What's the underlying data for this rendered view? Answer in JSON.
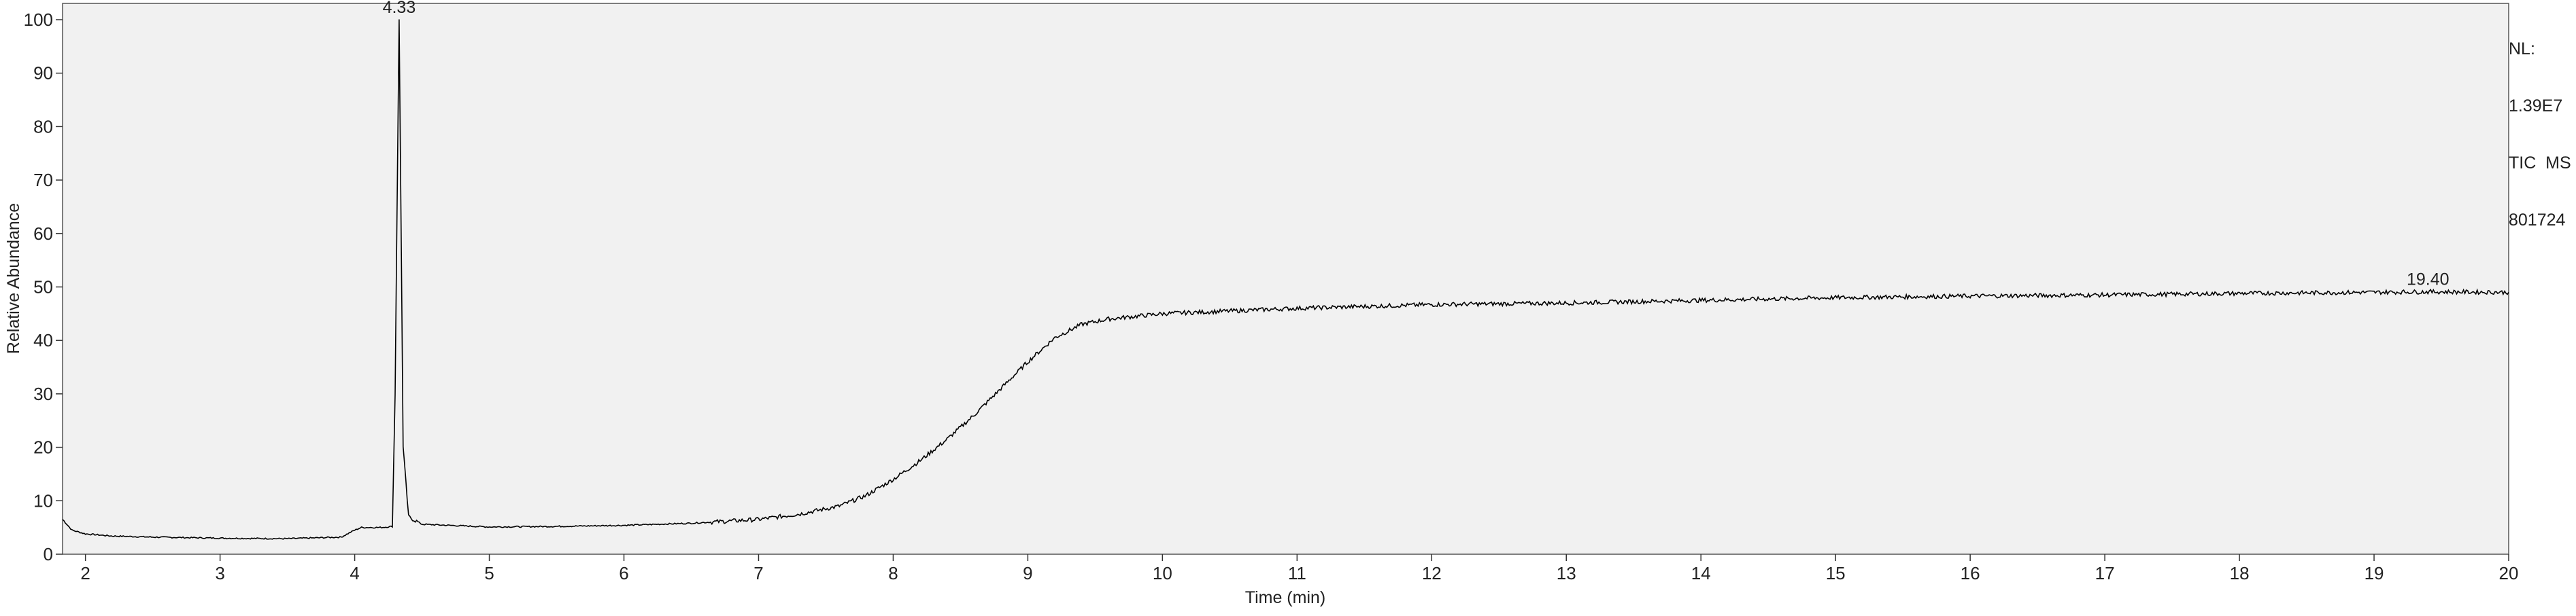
{
  "chart_data": {
    "type": "line",
    "xlabel": "Time (min)",
    "ylabel": "Relative Abundance",
    "xlim": [
      1.83,
      20.0
    ],
    "ylim": [
      0,
      100
    ],
    "x_ticks": [
      2,
      3,
      4,
      5,
      6,
      7,
      8,
      9,
      10,
      11,
      12,
      13,
      14,
      15,
      16,
      17,
      18,
      19,
      20
    ],
    "y_ticks": [
      0,
      10,
      20,
      30,
      40,
      50,
      60,
      70,
      80,
      90,
      100
    ],
    "grid": false,
    "series": [
      {
        "x": [
          1.83,
          1.9,
          2.0,
          2.2,
          2.5,
          3.0,
          3.5,
          3.9,
          4.0,
          4.05,
          4.2,
          4.28,
          4.3,
          4.33,
          4.36,
          4.4,
          4.5,
          5.0,
          5.5,
          6.0,
          6.5,
          7.0,
          7.3,
          7.6,
          7.8,
          8.0,
          8.2,
          8.4,
          8.6,
          8.8,
          9.0,
          9.2,
          9.4,
          9.6,
          10.0,
          10.5,
          11.0,
          12.0,
          13.0,
          14.0,
          15.0,
          16.0,
          17.0,
          18.0,
          19.0,
          19.4,
          20.0
        ],
        "y": [
          6.5,
          4.5,
          3.8,
          3.4,
          3.2,
          3.0,
          2.9,
          3.2,
          4.5,
          5.0,
          5.0,
          5.2,
          30.0,
          100.0,
          20.0,
          7.0,
          5.6,
          5.1,
          5.2,
          5.4,
          5.8,
          6.5,
          7.5,
          9.0,
          11.0,
          14.0,
          17.5,
          21.5,
          26.0,
          31.0,
          36.0,
          40.5,
          43.0,
          44.0,
          45.0,
          45.5,
          46.0,
          46.7,
          47.0,
          47.5,
          48.0,
          48.3,
          48.5,
          48.8,
          49.0,
          49.1,
          49.0
        ]
      }
    ],
    "annotations": [
      {
        "text": "4.33",
        "x": 4.33,
        "y": 100
      },
      {
        "text": "19.40",
        "x": 19.4,
        "y": 49.1
      }
    ]
  },
  "info": {
    "nl_label": "NL:",
    "nl_value": "1.39E7",
    "scan_type": "TIC  MS",
    "sample_id": "801724"
  }
}
